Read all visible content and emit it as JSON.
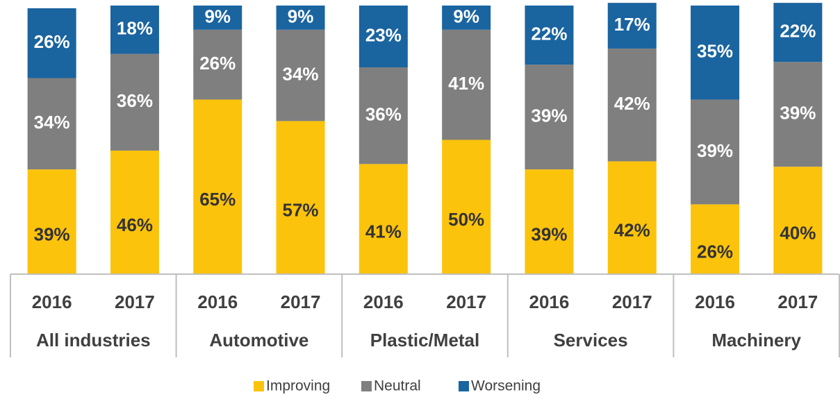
{
  "chart_data": {
    "type": "stacked_bar",
    "categories": [
      "2016",
      "2017",
      "2016",
      "2017",
      "2016",
      "2017",
      "2016",
      "2017",
      "2016",
      "2017"
    ],
    "groups": [
      "All industries",
      "Automotive",
      "Plastic/Metal",
      "Services",
      "Machinery"
    ],
    "series": [
      {
        "name": "Improving",
        "color": "#fcc30c",
        "values": [
          39,
          46,
          65,
          57,
          41,
          50,
          39,
          42,
          26,
          40
        ],
        "value_labels": [
          "39%",
          "46%",
          "65%",
          "57%",
          "41%",
          "50%",
          "39%",
          "42%",
          "26%",
          "40%"
        ]
      },
      {
        "name": "Neutral",
        "color": "#7f7f7f",
        "values": [
          34,
          36,
          26,
          34,
          36,
          41,
          39,
          42,
          39,
          39
        ],
        "value_labels": [
          "34%",
          "36%",
          "26%",
          "34%",
          "36%",
          "41%",
          "39%",
          "42%",
          "39%",
          "39%"
        ]
      },
      {
        "name": "Worsening",
        "color": "#1a64a0",
        "values": [
          26,
          18,
          9,
          9,
          23,
          9,
          22,
          17,
          35,
          22
        ],
        "value_labels": [
          "26%",
          "18%",
          "9%",
          "9%",
          "23%",
          "9%",
          "22%",
          "17%",
          "35%",
          "22%"
        ]
      }
    ],
    "legend": "bottom"
  }
}
